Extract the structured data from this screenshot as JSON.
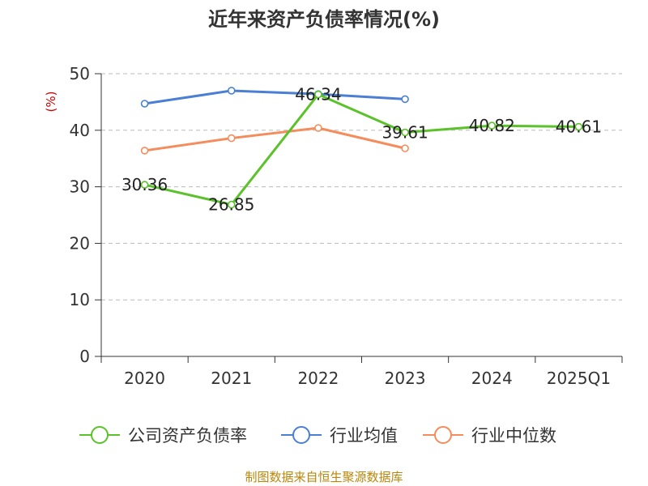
{
  "chart_data": {
    "type": "line",
    "title": "近年来资产负债率情况(%)",
    "ylabel": "(%)",
    "xlabel": "",
    "categories": [
      "2020",
      "2021",
      "2022",
      "2023",
      "2024",
      "2025Q1"
    ],
    "ylim": [
      0,
      50
    ],
    "yticks": [
      0,
      10,
      20,
      30,
      40,
      50
    ],
    "grid": true,
    "legend_position": "bottom",
    "series": [
      {
        "name": "公司资产负债率",
        "color": "#5cc22b",
        "values": [
          30.36,
          26.85,
          46.34,
          39.61,
          40.82,
          40.61
        ],
        "labels": [
          "30.36",
          "26.85",
          "46.34",
          "39.61",
          "40.82",
          "40.61"
        ]
      },
      {
        "name": "行业均值",
        "color": "#4a7fd4",
        "values": [
          44.7,
          47.0,
          46.4,
          45.5,
          null,
          null
        ]
      },
      {
        "name": "行业中位数",
        "color": "#f48c5c",
        "values": [
          36.4,
          38.6,
          40.4,
          36.8,
          null,
          null
        ]
      }
    ]
  },
  "footer": "制图数据来自恒生聚源数据库"
}
